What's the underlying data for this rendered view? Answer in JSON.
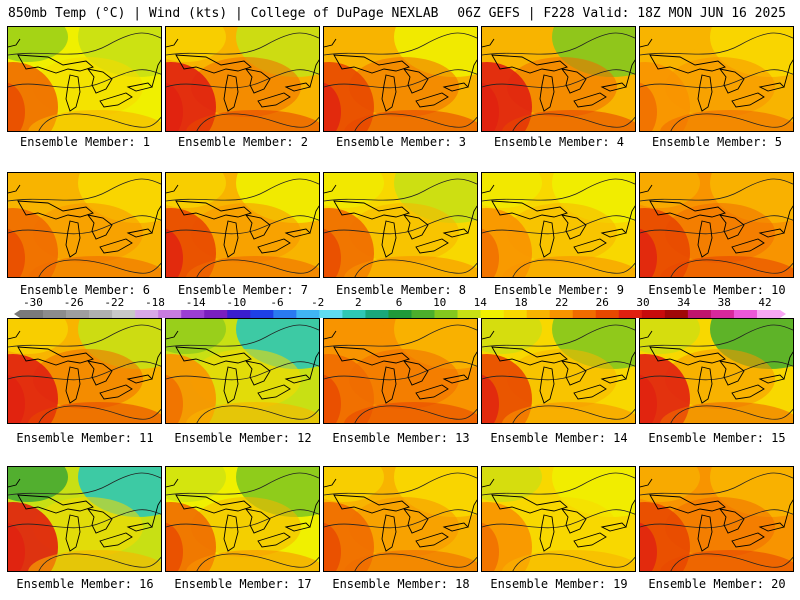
{
  "header": {
    "left": "850mb Temp (°C) | Wind (kts) | College of DuPage NEXLAB",
    "right": "06Z GEFS | F228 Valid: 18Z MON JUN 16 2025"
  },
  "colorbar": {
    "labels": [
      "-30",
      "-26",
      "-22",
      "-18",
      "-14",
      "-10",
      "-6",
      "-2",
      "2",
      "6",
      "10",
      "14",
      "18",
      "22",
      "26",
      "30",
      "34",
      "38",
      "42"
    ],
    "colors": [
      "#7a7a7a",
      "#8c8c8c",
      "#9e9e9e",
      "#b0b0b0",
      "#c8c8c8",
      "#d8a8e8",
      "#c87ce0",
      "#9b3ed4",
      "#7a1fbf",
      "#3a1ecf",
      "#1e40e6",
      "#2a7af0",
      "#40b4f4",
      "#5fdcf0",
      "#2ec8b4",
      "#1aa87a",
      "#1f9a3a",
      "#4caf2c",
      "#84c81e",
      "#c8e014",
      "#f0f000",
      "#f8d800",
      "#f8b400",
      "#f89400",
      "#f06c00",
      "#e84800",
      "#e02010",
      "#c80c0c",
      "#a00808",
      "#c0146c",
      "#d8289c",
      "#ec58d8",
      "#f8a8f4"
    ]
  },
  "members": [
    {
      "label": "Ensemble Member: 1"
    },
    {
      "label": "Ensemble Member: 2"
    },
    {
      "label": "Ensemble Member: 3"
    },
    {
      "label": "Ensemble Member: 4"
    },
    {
      "label": "Ensemble Member: 5"
    },
    {
      "label": "Ensemble Member: 6"
    },
    {
      "label": "Ensemble Member: 7"
    },
    {
      "label": "Ensemble Member: 8"
    },
    {
      "label": "Ensemble Member: 9"
    },
    {
      "label": "Ensemble Member: 10"
    },
    {
      "label": "Ensemble Member: 11"
    },
    {
      "label": "Ensemble Member: 12"
    },
    {
      "label": "Ensemble Member: 13"
    },
    {
      "label": "Ensemble Member: 14"
    },
    {
      "label": "Ensemble Member: 15"
    },
    {
      "label": "Ensemble Member: 16"
    },
    {
      "label": "Ensemble Member: 17"
    },
    {
      "label": "Ensemble Member: 18"
    },
    {
      "label": "Ensemble Member: 19"
    },
    {
      "label": "Ensemble Member: 20"
    }
  ]
}
